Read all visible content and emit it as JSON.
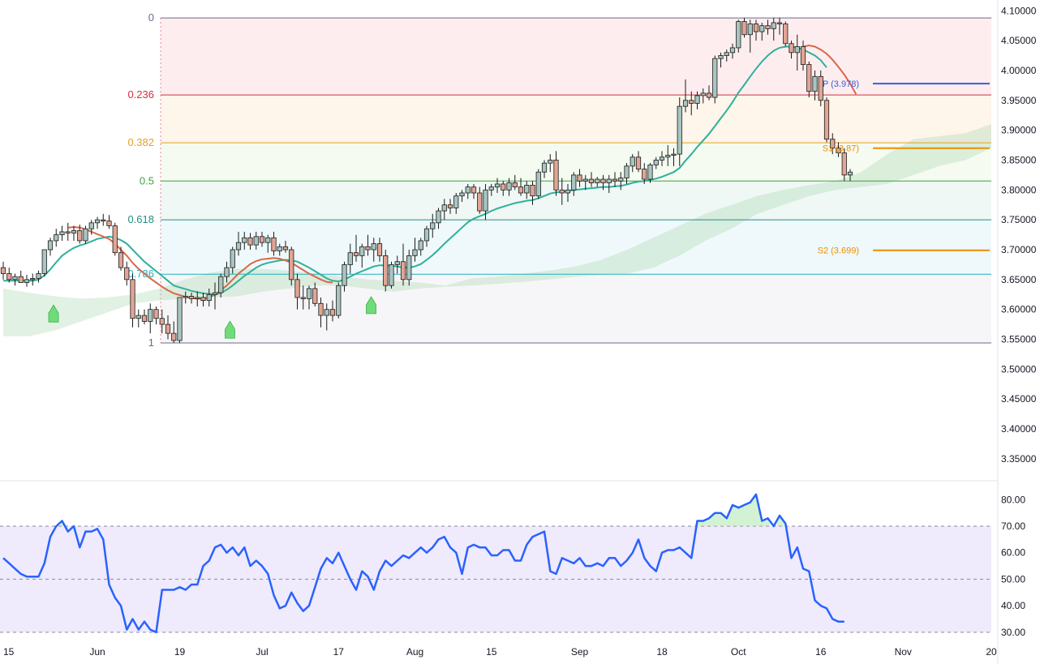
{
  "chart_data": {
    "type": "candlestick",
    "price_axis": {
      "ticks": [
        "4.10000",
        "4.05000",
        "4.00000",
        "3.95000",
        "3.90000",
        "3.85000",
        "3.80000",
        "3.75000",
        "3.70000",
        "3.65000",
        "3.60000",
        "3.55000",
        "3.50000",
        "3.45000",
        "3.40000",
        "3.35000"
      ],
      "range": [
        3.32,
        4.118
      ]
    },
    "rsi_axis": {
      "ticks": [
        "80.00",
        "70.00",
        "60.00",
        "50.00",
        "40.00",
        "30.00"
      ],
      "range": [
        27.5,
        85
      ],
      "upper_band": 70,
      "mid": 50,
      "lower_band": 30
    },
    "x_axis": {
      "labels": [
        "15",
        "Jun",
        "19",
        "Jul",
        "17",
        "Aug",
        "15",
        "Sep",
        "18",
        "Oct",
        "16",
        "Nov",
        "20"
      ],
      "label_bar_index": [
        0,
        16,
        30,
        44,
        57,
        70,
        83,
        98,
        112,
        125,
        139,
        153,
        168
      ]
    },
    "fibonacci": [
      {
        "label": "0",
        "price": 4.088,
        "color": "#6a6a8a"
      },
      {
        "label": "0.236",
        "price": 3.959,
        "color": "#d03040"
      },
      {
        "label": "0.382",
        "price": 3.879,
        "color": "#e8a020"
      },
      {
        "label": "0.5",
        "price": 3.815,
        "color": "#40a040"
      },
      {
        "label": "0.618",
        "price": 3.75,
        "color": "#209080"
      },
      {
        "label": "0.786",
        "price": 3.659,
        "color": "#20b0c0"
      },
      {
        "label": "1",
        "price": 3.544,
        "color": "#6a6a8a"
      }
    ],
    "pivots": [
      {
        "label": "P (3.978)",
        "price": 3.978,
        "color": "#3060e0"
      },
      {
        "label": "S1 (3.87)",
        "price": 3.87,
        "color": "#f08c00"
      },
      {
        "label": "S2 (3.699)",
        "price": 3.699,
        "color": "#f08c00"
      }
    ],
    "candles_ohlc": [
      [
        3.67,
        3.68,
        3.65,
        3.66
      ],
      [
        3.66,
        3.67,
        3.645,
        3.65
      ],
      [
        3.65,
        3.66,
        3.64,
        3.655
      ],
      [
        3.655,
        3.665,
        3.645,
        3.645
      ],
      [
        3.645,
        3.658,
        3.638,
        3.65
      ],
      [
        3.65,
        3.66,
        3.64,
        3.652
      ],
      [
        3.652,
        3.665,
        3.645,
        3.66
      ],
      [
        3.66,
        3.7,
        3.655,
        3.7
      ],
      [
        3.7,
        3.72,
        3.69,
        3.715
      ],
      [
        3.715,
        3.735,
        3.705,
        3.725
      ],
      [
        3.725,
        3.74,
        3.715,
        3.73
      ],
      [
        3.73,
        3.745,
        3.715,
        3.728
      ],
      [
        3.728,
        3.74,
        3.715,
        3.732
      ],
      [
        3.732,
        3.742,
        3.71,
        3.715
      ],
      [
        3.715,
        3.74,
        3.71,
        3.735
      ],
      [
        3.735,
        3.75,
        3.725,
        3.745
      ],
      [
        3.745,
        3.755,
        3.735,
        3.75
      ],
      [
        3.75,
        3.76,
        3.74,
        3.748
      ],
      [
        3.748,
        3.758,
        3.735,
        3.74
      ],
      [
        3.74,
        3.745,
        3.69,
        3.695
      ],
      [
        3.695,
        3.705,
        3.665,
        3.67
      ],
      [
        3.67,
        3.68,
        3.64,
        3.65
      ],
      [
        3.65,
        3.66,
        3.57,
        3.585
      ],
      [
        3.585,
        3.6,
        3.57,
        3.59
      ],
      [
        3.59,
        3.6,
        3.575,
        3.58
      ],
      [
        3.58,
        3.61,
        3.56,
        3.6
      ],
      [
        3.6,
        3.605,
        3.575,
        3.585
      ],
      [
        3.585,
        3.6,
        3.56,
        3.575
      ],
      [
        3.575,
        3.59,
        3.55,
        3.56
      ],
      [
        3.56,
        3.58,
        3.544,
        3.548
      ],
      [
        3.548,
        3.62,
        3.544,
        3.62
      ],
      [
        3.62,
        3.63,
        3.61,
        3.622
      ],
      [
        3.622,
        3.628,
        3.61,
        3.618
      ],
      [
        3.618,
        3.63,
        3.605,
        3.62
      ],
      [
        3.62,
        3.628,
        3.605,
        3.615
      ],
      [
        3.615,
        3.635,
        3.605,
        3.625
      ],
      [
        3.625,
        3.645,
        3.6,
        3.628
      ],
      [
        3.628,
        3.66,
        3.62,
        3.655
      ],
      [
        3.655,
        3.68,
        3.645,
        3.67
      ],
      [
        3.67,
        3.705,
        3.66,
        3.7
      ],
      [
        3.7,
        3.73,
        3.69,
        3.712
      ],
      [
        3.712,
        3.73,
        3.7,
        3.72
      ],
      [
        3.72,
        3.728,
        3.7,
        3.708
      ],
      [
        3.708,
        3.73,
        3.7,
        3.722
      ],
      [
        3.722,
        3.73,
        3.705,
        3.712
      ],
      [
        3.712,
        3.725,
        3.695,
        3.72
      ],
      [
        3.72,
        3.73,
        3.69,
        3.698
      ],
      [
        3.698,
        3.71,
        3.69,
        3.705
      ],
      [
        3.705,
        3.715,
        3.695,
        3.7
      ],
      [
        3.7,
        3.705,
        3.64,
        3.65
      ],
      [
        3.65,
        3.66,
        3.6,
        3.62
      ],
      [
        3.62,
        3.64,
        3.6,
        3.618
      ],
      [
        3.618,
        3.64,
        3.6,
        3.635
      ],
      [
        3.635,
        3.645,
        3.605,
        3.61
      ],
      [
        3.61,
        3.62,
        3.57,
        3.59
      ],
      [
        3.59,
        3.61,
        3.565,
        3.6
      ],
      [
        3.6,
        3.615,
        3.58,
        3.59
      ],
      [
        3.59,
        3.645,
        3.585,
        3.64
      ],
      [
        3.64,
        3.68,
        3.63,
        3.675
      ],
      [
        3.675,
        3.71,
        3.66,
        3.695
      ],
      [
        3.695,
        3.725,
        3.68,
        3.69
      ],
      [
        3.69,
        3.71,
        3.67,
        3.705
      ],
      [
        3.705,
        3.725,
        3.69,
        3.7
      ],
      [
        3.7,
        3.72,
        3.68,
        3.71
      ],
      [
        3.71,
        3.72,
        3.68,
        3.69
      ],
      [
        3.69,
        3.7,
        3.63,
        3.64
      ],
      [
        3.64,
        3.68,
        3.635,
        3.675
      ],
      [
        3.675,
        3.69,
        3.66,
        3.68
      ],
      [
        3.68,
        3.71,
        3.64,
        3.65
      ],
      [
        3.65,
        3.7,
        3.64,
        3.69
      ],
      [
        3.69,
        3.72,
        3.68,
        3.7
      ],
      [
        3.7,
        3.72,
        3.69,
        3.715
      ],
      [
        3.715,
        3.74,
        3.705,
        3.735
      ],
      [
        3.735,
        3.76,
        3.72,
        3.745
      ],
      [
        3.745,
        3.77,
        3.735,
        3.765
      ],
      [
        3.765,
        3.785,
        3.75,
        3.775
      ],
      [
        3.775,
        3.785,
        3.76,
        3.77
      ],
      [
        3.77,
        3.795,
        3.76,
        3.79
      ],
      [
        3.79,
        3.8,
        3.78,
        3.795
      ],
      [
        3.795,
        3.81,
        3.785,
        3.805
      ],
      [
        3.805,
        3.81,
        3.785,
        3.795
      ],
      [
        3.795,
        3.805,
        3.76,
        3.765
      ],
      [
        3.765,
        3.81,
        3.75,
        3.8
      ],
      [
        3.8,
        3.81,
        3.79,
        3.805
      ],
      [
        3.805,
        3.82,
        3.795,
        3.81
      ],
      [
        3.81,
        3.815,
        3.79,
        3.8
      ],
      [
        3.8,
        3.82,
        3.79,
        3.812
      ],
      [
        3.812,
        3.825,
        3.8,
        3.805
      ],
      [
        3.805,
        3.82,
        3.79,
        3.795
      ],
      [
        3.795,
        3.815,
        3.785,
        3.808
      ],
      [
        3.808,
        3.815,
        3.775,
        3.79
      ],
      [
        3.79,
        3.835,
        3.785,
        3.83
      ],
      [
        3.83,
        3.85,
        3.82,
        3.845
      ],
      [
        3.845,
        3.86,
        3.83,
        3.85
      ],
      [
        3.85,
        3.865,
        3.79,
        3.8
      ],
      [
        3.8,
        3.82,
        3.775,
        3.795
      ],
      [
        3.795,
        3.81,
        3.78,
        3.8
      ],
      [
        3.8,
        3.83,
        3.79,
        3.825
      ],
      [
        3.825,
        3.835,
        3.805,
        3.815
      ],
      [
        3.815,
        3.825,
        3.8,
        3.818
      ],
      [
        3.818,
        3.83,
        3.805,
        3.812
      ],
      [
        3.812,
        3.822,
        3.805,
        3.818
      ],
      [
        3.818,
        3.825,
        3.8,
        3.812
      ],
      [
        3.812,
        3.825,
        3.795,
        3.818
      ],
      [
        3.818,
        3.83,
        3.805,
        3.815
      ],
      [
        3.815,
        3.83,
        3.8,
        3.82
      ],
      [
        3.82,
        3.845,
        3.81,
        3.84
      ],
      [
        3.84,
        3.86,
        3.83,
        3.855
      ],
      [
        3.855,
        3.865,
        3.83,
        3.835
      ],
      [
        3.835,
        3.845,
        3.81,
        3.818
      ],
      [
        3.818,
        3.845,
        3.812,
        3.842
      ],
      [
        3.842,
        3.855,
        3.835,
        3.85
      ],
      [
        3.85,
        3.865,
        3.84,
        3.855
      ],
      [
        3.855,
        3.875,
        3.84,
        3.858
      ],
      [
        3.858,
        3.87,
        3.84,
        3.86
      ],
      [
        3.86,
        3.955,
        3.84,
        3.94
      ],
      [
        3.94,
        3.985,
        3.93,
        3.95
      ],
      [
        3.95,
        3.965,
        3.925,
        3.945
      ],
      [
        3.945,
        3.965,
        3.935,
        3.958
      ],
      [
        3.958,
        3.97,
        3.945,
        3.962
      ],
      [
        3.962,
        3.975,
        3.95,
        3.955
      ],
      [
        3.955,
        4.025,
        3.945,
        4.02
      ],
      [
        4.02,
        4.03,
        4.005,
        4.025
      ],
      [
        4.025,
        4.035,
        4.015,
        4.03
      ],
      [
        4.03,
        4.045,
        4.02,
        4.038
      ],
      [
        4.038,
        4.085,
        4.03,
        4.082
      ],
      [
        4.082,
        4.088,
        4.055,
        4.06
      ],
      [
        4.06,
        4.085,
        4.03,
        4.078
      ],
      [
        4.078,
        4.085,
        4.05,
        4.065
      ],
      [
        4.065,
        4.08,
        4.05,
        4.075
      ],
      [
        4.075,
        4.085,
        4.06,
        4.07
      ],
      [
        4.07,
        4.088,
        4.05,
        4.08
      ],
      [
        4.08,
        4.088,
        4.06,
        4.078
      ],
      [
        4.078,
        4.082,
        4.04,
        4.045
      ],
      [
        4.045,
        4.05,
        4.02,
        4.03
      ],
      [
        4.03,
        4.06,
        4.0,
        4.04
      ],
      [
        4.04,
        4.05,
        4.0,
        4.01
      ],
      [
        4.01,
        4.015,
        3.955,
        3.965
      ],
      [
        3.965,
        4.0,
        3.95,
        3.99
      ],
      [
        3.99,
        4.0,
        3.94,
        3.95
      ],
      [
        3.95,
        3.955,
        3.88,
        3.885
      ],
      [
        3.885,
        3.895,
        3.86,
        3.87
      ],
      [
        3.87,
        3.88,
        3.855,
        3.862
      ],
      [
        3.862,
        3.87,
        3.815,
        3.825
      ],
      [
        3.825,
        3.835,
        3.815,
        3.83
      ]
    ],
    "ema_green": [
      3.648,
      3.648,
      3.648,
      3.648,
      3.648,
      3.648,
      3.65,
      3.657,
      3.667,
      3.679,
      3.69,
      3.697,
      3.703,
      3.707,
      3.71,
      3.714,
      3.718,
      3.72,
      3.722,
      3.72,
      3.716,
      3.71,
      3.7,
      3.69,
      3.68,
      3.672,
      3.664,
      3.656,
      3.648,
      3.64,
      3.637,
      3.634,
      3.631,
      3.629,
      3.627,
      3.626,
      3.625,
      3.628,
      3.633,
      3.64,
      3.648,
      3.656,
      3.663,
      3.67,
      3.675,
      3.678,
      3.68,
      3.682,
      3.683,
      3.682,
      3.68,
      3.675,
      3.67,
      3.664,
      3.658,
      3.652,
      3.648,
      3.647,
      3.65,
      3.655,
      3.66,
      3.664,
      3.668,
      3.672,
      3.674,
      3.674,
      3.673,
      3.672,
      3.67,
      3.67,
      3.672,
      3.676,
      3.683,
      3.691,
      3.7,
      3.71,
      3.719,
      3.728,
      3.737,
      3.746,
      3.752,
      3.756,
      3.76,
      3.765,
      3.769,
      3.772,
      3.775,
      3.778,
      3.78,
      3.782,
      3.783,
      3.786,
      3.79,
      3.794,
      3.796,
      3.797,
      3.798,
      3.8,
      3.801,
      3.802,
      3.803,
      3.804,
      3.805,
      3.805,
      3.806,
      3.807,
      3.809,
      3.812,
      3.814,
      3.815,
      3.817,
      3.819,
      3.822,
      3.826,
      3.83,
      3.837,
      3.849,
      3.86,
      3.872,
      3.883,
      3.894,
      3.907,
      3.92,
      3.933,
      3.947,
      3.963,
      3.976,
      3.99,
      4.003,
      4.015,
      4.025,
      4.033,
      4.038,
      4.04,
      4.04,
      4.038,
      4.035,
      4.03,
      4.025,
      4.017,
      4.005
    ],
    "ema_red": {
      "start_index": 11,
      "values": [
        3.737,
        3.738,
        3.737,
        3.734,
        3.73,
        3.726,
        3.722,
        3.718,
        3.71,
        3.7,
        3.69,
        3.678,
        3.668,
        3.66,
        3.652,
        3.645,
        3.638,
        3.632,
        3.627,
        3.624,
        3.621,
        3.619,
        3.618,
        3.618,
        3.62,
        3.625,
        3.632,
        3.64,
        3.65,
        3.66,
        3.668,
        3.676,
        3.681,
        3.684,
        3.685,
        3.686,
        3.685,
        3.682,
        3.678,
        3.672,
        3.666,
        3.66,
        3.655,
        3.65,
        3.646,
        3.645
      ]
    },
    "ema_red_late": {
      "start_index": 136,
      "values": [
        4.04,
        4.042,
        4.04,
        4.035,
        4.028,
        4.018,
        4.006,
        3.993,
        3.978,
        3.96
      ]
    },
    "cloud": {
      "upper": [
        3.635,
        3.628,
        3.622,
        3.618,
        3.62,
        3.625,
        3.635,
        3.65,
        3.662,
        3.668,
        3.668,
        3.665,
        3.66,
        3.655,
        3.65,
        3.648,
        3.645,
        3.64,
        3.652,
        3.655,
        3.66,
        3.665,
        3.672,
        3.683,
        3.7,
        3.72,
        3.74,
        3.76,
        3.775,
        3.79,
        3.8,
        3.808,
        3.815,
        3.83,
        3.86,
        3.885,
        3.89,
        3.895,
        3.91
      ],
      "lower": [
        3.555,
        3.555,
        3.565,
        3.58,
        3.595,
        3.61,
        3.615,
        3.618,
        3.62,
        3.622,
        3.63,
        3.635,
        3.64,
        3.64,
        3.635,
        3.63,
        3.635,
        3.638,
        3.64,
        3.643,
        3.646,
        3.65,
        3.655,
        3.658,
        3.66,
        3.67,
        3.69,
        3.715,
        3.735,
        3.76,
        3.775,
        3.79,
        3.8,
        3.805,
        3.81,
        3.825,
        3.84,
        3.85,
        3.87
      ]
    },
    "rsi": [
      58,
      56,
      54,
      52,
      51,
      51,
      51,
      56,
      66,
      70,
      72,
      68,
      70,
      62,
      68,
      68,
      69,
      65,
      48,
      43,
      40,
      31,
      35,
      31,
      34,
      31,
      30,
      46,
      46,
      46,
      47,
      46,
      48,
      48,
      55,
      57,
      62,
      63,
      60,
      62,
      59,
      62,
      55,
      57,
      55,
      52,
      44,
      39,
      40,
      45,
      41,
      38,
      40,
      47,
      54,
      58,
      56,
      60,
      55,
      50,
      46,
      53,
      51,
      46,
      53,
      57,
      55,
      57,
      59,
      58,
      60,
      62,
      60,
      62,
      65,
      66,
      62,
      60,
      52,
      62,
      63,
      62,
      62,
      59,
      59,
      61,
      61,
      57,
      57,
      63,
      66,
      67,
      68,
      53,
      52,
      58,
      57,
      56,
      58,
      55,
      55,
      56,
      55,
      58,
      58,
      55,
      57,
      60,
      65,
      58,
      55,
      53,
      60,
      61,
      61,
      62,
      60,
      58,
      72,
      72,
      73,
      75,
      75,
      73,
      78,
      77,
      78,
      79,
      82,
      72,
      73,
      70,
      74,
      71,
      58,
      62,
      54,
      53,
      42,
      40,
      39,
      35,
      34,
      34
    ]
  }
}
